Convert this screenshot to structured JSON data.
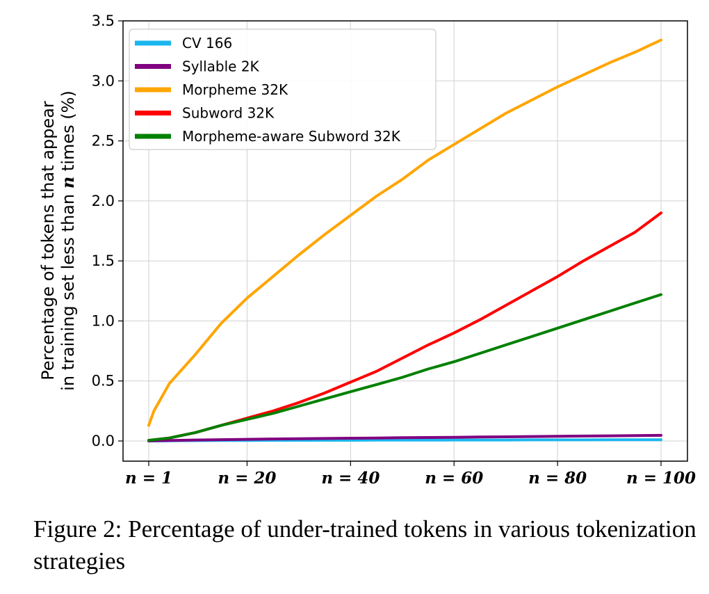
{
  "caption": "Figure 2: Percentage of under-trained tokens in various tokenization strategies",
  "chart_data": {
    "type": "line",
    "ylabel_line1": "Percentage of tokens that appear",
    "ylabel_line2_pre": "in training set less than ",
    "ylabel_line2_var": "n",
    "ylabel_line2_post": " times (%)",
    "xlim": [
      1,
      100
    ],
    "ylim": [
      0,
      3.5
    ],
    "grid": true,
    "legend_position": "top-left",
    "x_ticks": [
      {
        "value": 1,
        "label": "n = 1"
      },
      {
        "value": 20,
        "label": "n = 20"
      },
      {
        "value": 40,
        "label": "n = 40"
      },
      {
        "value": 60,
        "label": "n = 60"
      },
      {
        "value": 80,
        "label": "n = 80"
      },
      {
        "value": 100,
        "label": "n = 100"
      }
    ],
    "y_ticks": [
      {
        "value": 0,
        "label": "0.0"
      },
      {
        "value": 0.5,
        "label": "0.5"
      },
      {
        "value": 1.0,
        "label": "1.0"
      },
      {
        "value": 1.5,
        "label": "1.5"
      },
      {
        "value": 2.0,
        "label": "2.0"
      },
      {
        "value": 2.5,
        "label": "2.5"
      },
      {
        "value": 3.0,
        "label": "3.0"
      },
      {
        "value": 3.5,
        "label": "3.5"
      }
    ],
    "x": [
      1,
      2,
      5,
      10,
      15,
      20,
      25,
      30,
      35,
      40,
      45,
      50,
      55,
      60,
      65,
      70,
      75,
      80,
      85,
      90,
      95,
      100
    ],
    "series": [
      {
        "name": "CV 166",
        "color": "#1ab7ef",
        "values": [
          0.0,
          0.0,
          0.002,
          0.003,
          0.004,
          0.004,
          0.005,
          0.005,
          0.006,
          0.006,
          0.007,
          0.007,
          0.007,
          0.008,
          0.008,
          0.008,
          0.009,
          0.009,
          0.009,
          0.01,
          0.01,
          0.01
        ]
      },
      {
        "name": "Syllable 2K",
        "color": "#800080",
        "values": [
          0.0,
          0.002,
          0.004,
          0.008,
          0.011,
          0.014,
          0.017,
          0.019,
          0.021,
          0.023,
          0.025,
          0.027,
          0.029,
          0.031,
          0.033,
          0.035,
          0.037,
          0.039,
          0.041,
          0.043,
          0.045,
          0.047
        ]
      },
      {
        "name": "Morpheme 32K",
        "color": "#ffa500",
        "values": [
          0.13,
          0.25,
          0.48,
          0.72,
          0.98,
          1.19,
          1.37,
          1.55,
          1.72,
          1.88,
          2.04,
          2.18,
          2.34,
          2.47,
          2.6,
          2.73,
          2.84,
          2.95,
          3.05,
          3.15,
          3.24,
          3.34
        ]
      },
      {
        "name": "Subword 32K",
        "color": "#ff0000",
        "values": [
          0.005,
          0.01,
          0.025,
          0.07,
          0.13,
          0.19,
          0.25,
          0.32,
          0.4,
          0.49,
          0.58,
          0.69,
          0.8,
          0.9,
          1.01,
          1.13,
          1.25,
          1.37,
          1.5,
          1.62,
          1.74,
          1.9
        ]
      },
      {
        "name": "Morpheme-aware Subword 32K",
        "color": "#008000",
        "values": [
          0.005,
          0.01,
          0.025,
          0.07,
          0.13,
          0.18,
          0.23,
          0.29,
          0.35,
          0.41,
          0.47,
          0.53,
          0.6,
          0.66,
          0.73,
          0.8,
          0.87,
          0.94,
          1.01,
          1.08,
          1.15,
          1.22
        ]
      }
    ]
  }
}
